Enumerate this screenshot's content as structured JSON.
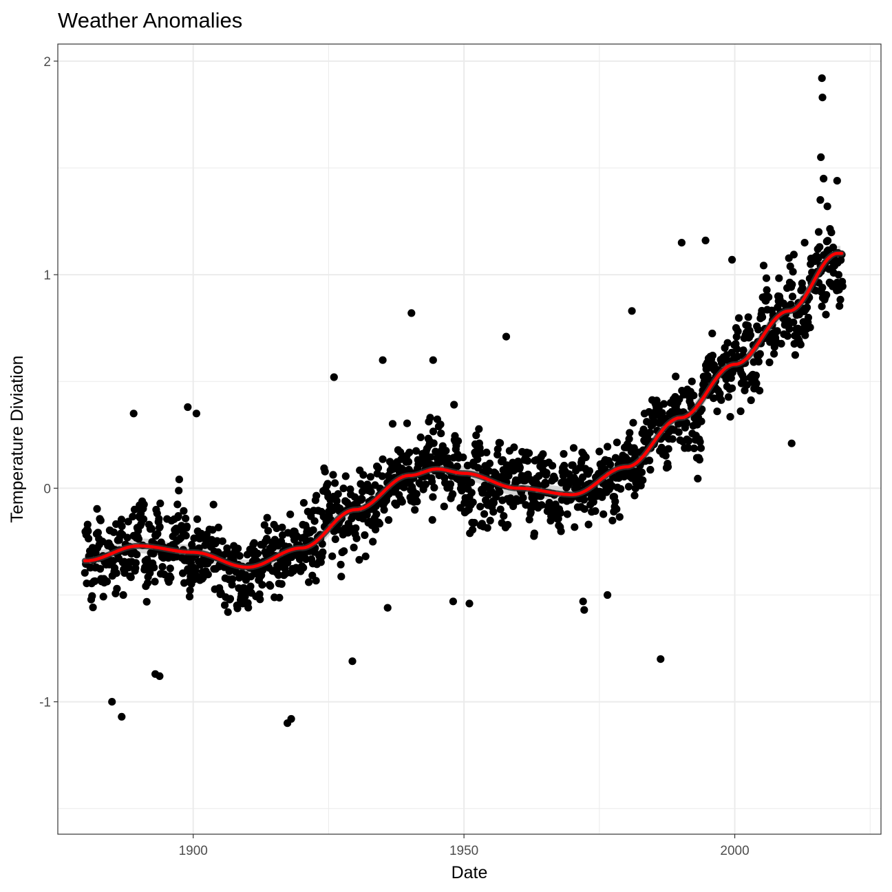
{
  "chart_data": {
    "type": "scatter",
    "title": "Weather Anomalies",
    "xlabel": "Date",
    "ylabel": "Temperature Diviation",
    "xlim": [
      1875,
      2027
    ],
    "ylim": [
      -1.62,
      2.08
    ],
    "x_ticks": [
      1900,
      1950,
      2000
    ],
    "x_tick_labels": [
      "1900",
      "1950",
      "2000"
    ],
    "y_ticks": [
      -1,
      0,
      1,
      2
    ],
    "y_tick_labels": [
      "-1",
      "0",
      "1",
      "2"
    ],
    "grid": true,
    "legend": "none",
    "date_range": [
      "1880-01",
      "2019-12"
    ],
    "point_frequency": "monthly",
    "trend_knots": {
      "x": [
        1880,
        1890,
        1900,
        1910,
        1920,
        1930,
        1940,
        1945,
        1950,
        1960,
        1970,
        1980,
        1990,
        2000,
        2010,
        2019
      ],
      "y": [
        -0.34,
        -0.27,
        -0.3,
        -0.37,
        -0.28,
        -0.1,
        0.06,
        0.09,
        0.07,
        0.0,
        -0.03,
        0.1,
        0.33,
        0.58,
        0.83,
        1.1
      ]
    },
    "outliers": {
      "x": [
        2016.1,
        2016.2,
        2015.9,
        2016.4,
        2015.8,
        2017.1,
        2018.9,
        2015.5,
        1990.2,
        1994.6,
        2012.9,
        1940.3,
        1957.8,
        1981.0,
        1935.0,
        1944.3,
        1926.0,
        1899.0,
        1900.6,
        1889.0,
        1893.0,
        1917.4,
        1918.1,
        1885.0,
        1886.8,
        1893.8,
        1929.4,
        1999.5,
        2010.5,
        1972.0,
        1972.2,
        1976.5,
        1948.0,
        1951.0,
        1935.9,
        1986.3
      ],
      "y": [
        1.92,
        1.83,
        1.55,
        1.45,
        1.35,
        1.32,
        1.44,
        1.2,
        1.15,
        1.16,
        1.15,
        0.82,
        0.71,
        0.83,
        0.6,
        0.6,
        0.52,
        0.38,
        0.35,
        0.35,
        -0.87,
        -1.1,
        -1.08,
        -1.0,
        -1.07,
        -0.88,
        -0.81,
        1.07,
        0.21,
        -0.53,
        -0.57,
        -0.5,
        -0.53,
        -0.54,
        -0.56,
        -0.8
      ]
    }
  },
  "colors": {
    "points": "#000000",
    "trend_line": "#ff0000",
    "smooth_line": "#333333",
    "confidence_band": "#c8c8c8",
    "grid": "#ebebeb",
    "panel_border": "#333333",
    "tick_labels": "#4d4d4d"
  }
}
